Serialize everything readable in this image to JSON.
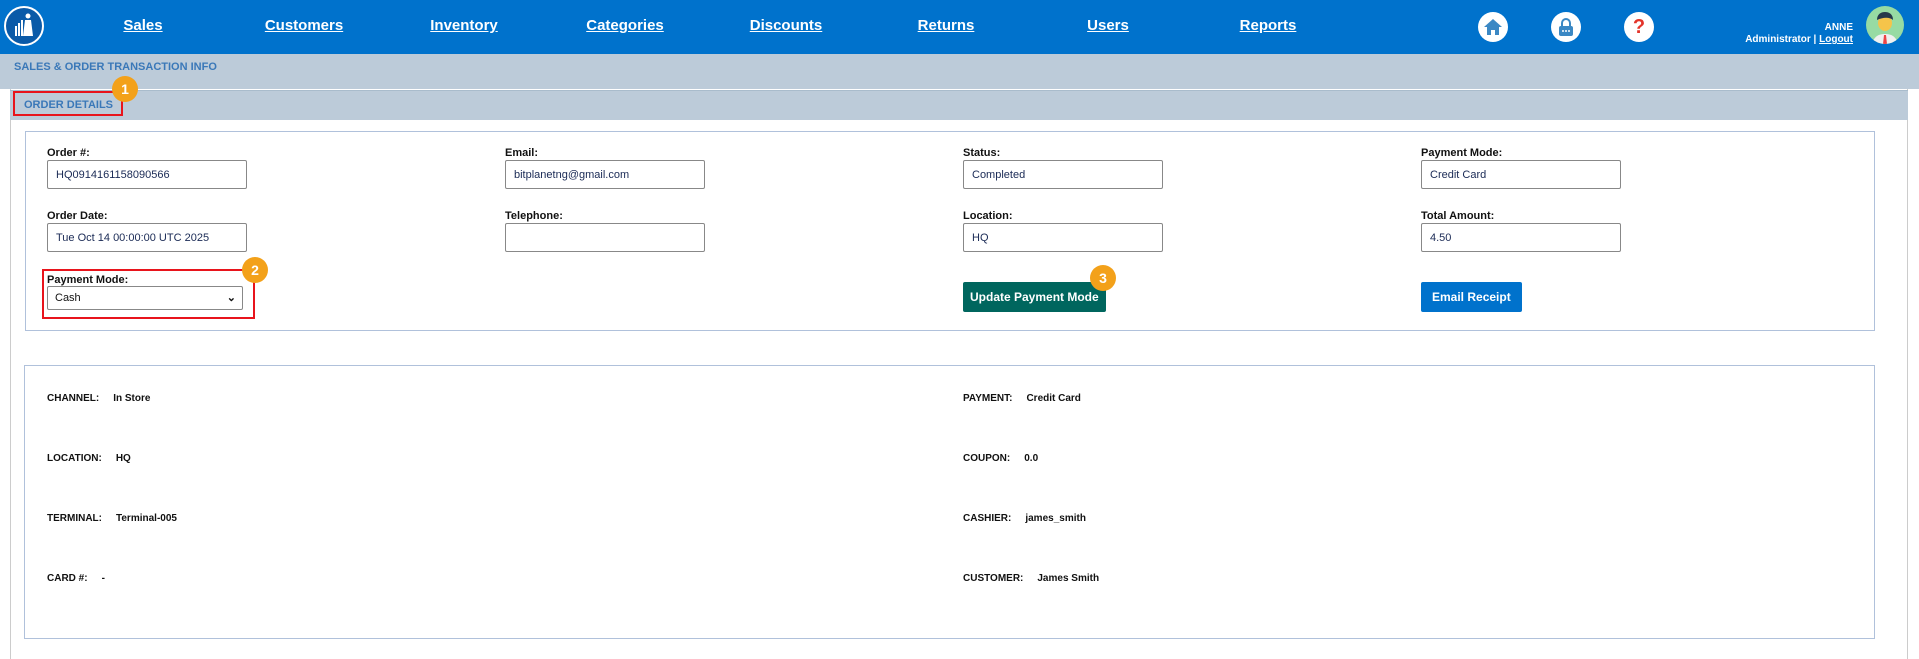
{
  "nav": {
    "items": [
      "Sales",
      "Customers",
      "Inventory",
      "Categories",
      "Discounts",
      "Returns",
      "Users",
      "Reports"
    ],
    "icons": [
      "home-icon",
      "lock-icon",
      "help-icon"
    ],
    "user": {
      "name": "ANNE",
      "role": "Administrator",
      "logout": "Logout"
    },
    "color": "#0072cc"
  },
  "breadcrumb": "SALES & ORDER TRANSACTION INFO",
  "section_title": "ORDER DETAILS",
  "badges": [
    "1",
    "2",
    "3"
  ],
  "form": {
    "order_no": {
      "label": "Order #:",
      "value": "HQ0914161158090566"
    },
    "email": {
      "label": "Email:",
      "value": "bitplanetng@gmail.com"
    },
    "status": {
      "label": "Status:",
      "value": "Completed"
    },
    "payment_mode_display": {
      "label": "Payment Mode:",
      "value": "Credit Card"
    },
    "order_date": {
      "label": "Order Date:",
      "value": "Tue Oct 14 00:00:00 UTC 2025"
    },
    "telephone": {
      "label": "Telephone:",
      "value": ""
    },
    "location": {
      "label": "Location:",
      "value": "HQ"
    },
    "total_amount": {
      "label": "Total Amount:",
      "value": "4.50"
    },
    "payment_mode_select": {
      "label": "Payment Mode:",
      "selected": "Cash"
    },
    "update_button": "Update Payment Mode",
    "email_button": "Email Receipt",
    "update_color": "#00665e",
    "email_color": "#0072cc"
  },
  "details": {
    "left": [
      {
        "label": "CHANNEL:",
        "value": "In Store"
      },
      {
        "label": "LOCATION:",
        "value": "HQ"
      },
      {
        "label": "TERMINAL:",
        "value": "Terminal-005"
      },
      {
        "label": "CARD #:",
        "value": "-"
      }
    ],
    "right": [
      {
        "label": "PAYMENT:",
        "value": "Credit Card"
      },
      {
        "label": "COUPON:",
        "value": "0.0"
      },
      {
        "label": "CASHIER:",
        "value": "james_smith"
      },
      {
        "label": "CUSTOMER:",
        "value": "James Smith"
      }
    ]
  }
}
